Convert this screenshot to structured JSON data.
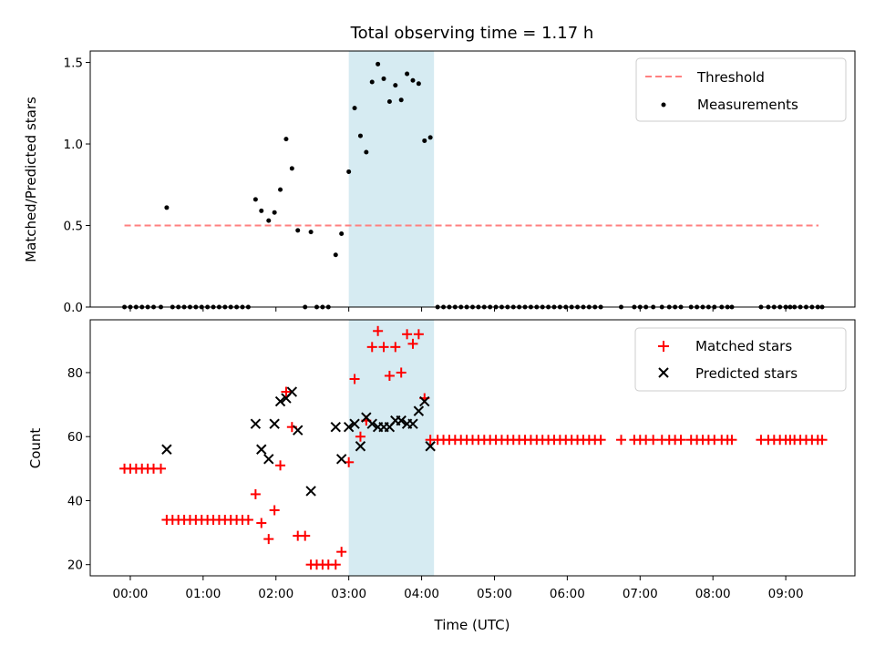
{
  "chart_data": [
    {
      "type": "scatter",
      "title": "Total observing time = 1.17 h",
      "xlabel": "",
      "ylabel": "Matched/Predicted stars",
      "xlim_hours": [
        -0.55,
        9.95
      ],
      "ylim": [
        0,
        1.57
      ],
      "yticks": [
        0.0,
        0.5,
        1.0,
        1.5
      ],
      "ytick_labels": [
        "0.0",
        "0.5",
        "1.0",
        "1.5"
      ],
      "shaded_span_hours": [
        3.0,
        4.17
      ],
      "shaded_color": "#add8e6",
      "legend_position": "top-right",
      "legend": [
        {
          "label": "Threshold",
          "kind": "dashed-line",
          "color": "#ff8080"
        },
        {
          "label": "Measurements",
          "kind": "dot",
          "color": "#000000"
        }
      ],
      "threshold": {
        "value": 0.5,
        "x_range_hours": [
          -0.08,
          9.45
        ],
        "color": "#ff8080"
      },
      "measurements": {
        "x_hours": [
          -0.08,
          0.0,
          0.08,
          0.16,
          0.24,
          0.32,
          0.42,
          0.5,
          0.58,
          0.66,
          0.74,
          0.82,
          0.9,
          0.98,
          1.06,
          1.14,
          1.22,
          1.3,
          1.38,
          1.46,
          1.54,
          1.62,
          1.72,
          1.8,
          1.9,
          1.98,
          2.06,
          2.14,
          2.22,
          2.3,
          2.4,
          2.48,
          2.56,
          2.64,
          2.72,
          2.82,
          2.9,
          3.0,
          3.08,
          3.16,
          3.24,
          3.32,
          3.4,
          3.48,
          3.56,
          3.64,
          3.72,
          3.8,
          3.88,
          3.96,
          4.04,
          4.12,
          4.22,
          4.3,
          4.38,
          4.46,
          4.54,
          4.62,
          4.7,
          4.78,
          4.86,
          4.94,
          5.02,
          5.1,
          5.18,
          5.26,
          5.34,
          5.42,
          5.5,
          5.58,
          5.66,
          5.74,
          5.82,
          5.9,
          5.98,
          6.06,
          6.14,
          6.22,
          6.3,
          6.38,
          6.46,
          6.74,
          6.92,
          7.0,
          7.08,
          7.18,
          7.3,
          7.4,
          7.48,
          7.56,
          7.7,
          7.78,
          7.86,
          7.94,
          8.02,
          8.12,
          8.2,
          8.26,
          8.66,
          8.76,
          8.84,
          8.92,
          9.0,
          9.06,
          9.12,
          9.2,
          9.28,
          9.36,
          9.44,
          9.5
        ],
        "y": [
          0,
          0,
          0,
          0,
          0,
          0,
          0,
          0.61,
          0,
          0,
          0,
          0,
          0,
          0,
          0,
          0,
          0,
          0,
          0,
          0,
          0,
          0,
          0.66,
          0.59,
          0.53,
          0.58,
          0.72,
          1.03,
          0.85,
          0.47,
          0,
          0.46,
          0,
          0,
          0,
          0.32,
          0.45,
          0.83,
          1.22,
          1.05,
          0.95,
          1.38,
          1.49,
          1.4,
          1.26,
          1.36,
          1.27,
          1.43,
          1.39,
          1.37,
          1.02,
          1.04,
          0,
          0,
          0,
          0,
          0,
          0,
          0,
          0,
          0,
          0,
          0,
          0,
          0,
          0,
          0,
          0,
          0,
          0,
          0,
          0,
          0,
          0,
          0,
          0,
          0,
          0,
          0,
          0,
          0,
          0,
          0,
          0,
          0,
          0,
          0,
          0,
          0,
          0,
          0,
          0,
          0,
          0,
          0,
          0,
          0,
          0,
          0,
          0,
          0,
          0,
          0,
          0,
          0,
          0,
          0,
          0,
          0,
          0
        ]
      }
    },
    {
      "type": "scatter",
      "title": "",
      "xlabel": "Time (UTC)",
      "ylabel": "Count",
      "xlim_hours": [
        -0.55,
        9.95
      ],
      "ylim": [
        16.5,
        96.5
      ],
      "yticks": [
        20,
        40,
        60,
        80
      ],
      "ytick_labels": [
        "20",
        "40",
        "60",
        "80"
      ],
      "xticks_hours": [
        0,
        1,
        2,
        3,
        4,
        5,
        6,
        7,
        8,
        9
      ],
      "xtick_labels": [
        "00:00",
        "01:00",
        "02:00",
        "03:00",
        "04:00",
        "05:00",
        "06:00",
        "07:00",
        "08:00",
        "09:00"
      ],
      "shaded_span_hours": [
        3.0,
        4.17
      ],
      "shaded_color": "#add8e6",
      "legend_position": "top-right",
      "series": [
        {
          "name": "Matched stars",
          "marker": "plus",
          "color": "#ff0000",
          "x_hours": [
            -0.08,
            0.0,
            0.08,
            0.16,
            0.24,
            0.32,
            0.42,
            0.5,
            0.58,
            0.66,
            0.74,
            0.82,
            0.9,
            0.98,
            1.06,
            1.14,
            1.22,
            1.3,
            1.38,
            1.46,
            1.54,
            1.62,
            1.72,
            1.8,
            1.9,
            1.98,
            2.06,
            2.14,
            2.22,
            2.3,
            2.4,
            2.48,
            2.56,
            2.64,
            2.72,
            2.82,
            2.9,
            3.0,
            3.08,
            3.16,
            3.24,
            3.32,
            3.4,
            3.48,
            3.56,
            3.64,
            3.72,
            3.8,
            3.88,
            3.96,
            4.04,
            4.12,
            4.22,
            4.3,
            4.38,
            4.46,
            4.54,
            4.62,
            4.7,
            4.78,
            4.86,
            4.94,
            5.02,
            5.1,
            5.18,
            5.26,
            5.34,
            5.42,
            5.5,
            5.58,
            5.66,
            5.74,
            5.82,
            5.9,
            5.98,
            6.06,
            6.14,
            6.22,
            6.3,
            6.38,
            6.46,
            6.74,
            6.92,
            7.0,
            7.08,
            7.18,
            7.3,
            7.4,
            7.48,
            7.56,
            7.7,
            7.78,
            7.86,
            7.94,
            8.02,
            8.12,
            8.2,
            8.26,
            8.66,
            8.76,
            8.84,
            8.92,
            9.0,
            9.06,
            9.12,
            9.2,
            9.28,
            9.36,
            9.44,
            9.5
          ],
          "y": [
            50,
            50,
            50,
            50,
            50,
            50,
            50,
            34,
            34,
            34,
            34,
            34,
            34,
            34,
            34,
            34,
            34,
            34,
            34,
            34,
            34,
            34,
            42,
            33,
            28,
            37,
            51,
            74,
            63,
            29,
            29,
            20,
            20,
            20,
            20,
            20,
            24,
            52,
            78,
            60,
            65,
            88,
            93,
            88,
            79,
            88,
            80,
            92,
            89,
            92,
            72,
            59,
            59,
            59,
            59,
            59,
            59,
            59,
            59,
            59,
            59,
            59,
            59,
            59,
            59,
            59,
            59,
            59,
            59,
            59,
            59,
            59,
            59,
            59,
            59,
            59,
            59,
            59,
            59,
            59,
            59,
            59,
            59,
            59,
            59,
            59,
            59,
            59,
            59,
            59,
            59,
            59,
            59,
            59,
            59,
            59,
            59,
            59,
            59,
            59,
            59,
            59,
            59,
            59,
            59,
            59,
            59,
            59,
            59,
            59
          ]
        },
        {
          "name": "Predicted stars",
          "marker": "x",
          "color": "#000000",
          "x_hours": [
            0.5,
            1.72,
            1.8,
            1.9,
            1.98,
            2.06,
            2.14,
            2.22,
            2.3,
            2.48,
            2.82,
            2.9,
            3.0,
            3.08,
            3.16,
            3.24,
            3.32,
            3.4,
            3.48,
            3.56,
            3.64,
            3.72,
            3.8,
            3.88,
            3.96,
            4.04,
            4.12
          ],
          "y": [
            56,
            64,
            56,
            53,
            64,
            71,
            72,
            74,
            62,
            43,
            63,
            53,
            63,
            64,
            57,
            66,
            64,
            63,
            63,
            63,
            65,
            65,
            64,
            64,
            68,
            71,
            57
          ]
        }
      ]
    }
  ]
}
